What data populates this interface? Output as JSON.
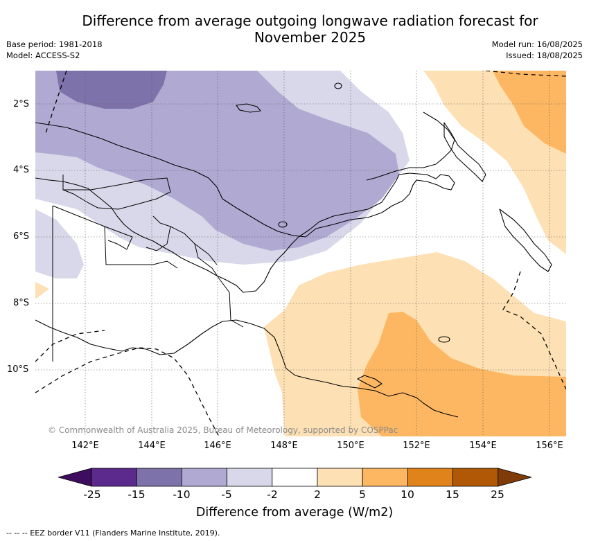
{
  "title_line1": "Difference from average outgoing longwave radiation forecast for",
  "title_line2": "November 2025",
  "base_period": "Base period: 1981-2018",
  "model": "Model: ACCESS-S2",
  "model_run": "Model run: 16/08/2025",
  "issued": "Issued: 18/08/2025",
  "copyright": "© Commonwealth of Australia 2025, Bureau of Meteorology, supported by COSPPac",
  "footnote": "-- -- -- EEZ border V11 (Flanders Marine Institute, 2019).",
  "map": {
    "lat_labels": [
      "2°S",
      "4°S",
      "6°S",
      "8°S",
      "10°S"
    ],
    "lon_labels": [
      "142°E",
      "144°E",
      "146°E",
      "148°E",
      "150°E",
      "152°E",
      "154°E",
      "156°E"
    ],
    "lat_values": [
      -2,
      -4,
      -6,
      -8,
      -10
    ],
    "lon_values": [
      142,
      144,
      146,
      148,
      150,
      152,
      154,
      156
    ],
    "lon_range": [
      140.4,
      156.4
    ],
    "lat_range": [
      -12.0,
      -1.0
    ]
  },
  "colorbar": {
    "title": "Difference from average (W/m2)",
    "tick_labels": [
      "-25",
      "-15",
      "-10",
      "-5",
      "-2",
      "2",
      "5",
      "10",
      "15",
      "25"
    ],
    "colors": [
      "#3f0d5e",
      "#5c2a8c",
      "#7e72aa",
      "#b0a9d1",
      "#d8d8ea",
      "#ffffff",
      "#fde0b3",
      "#fdb762",
      "#e0831a",
      "#b05806",
      "#7f3b08"
    ]
  }
}
